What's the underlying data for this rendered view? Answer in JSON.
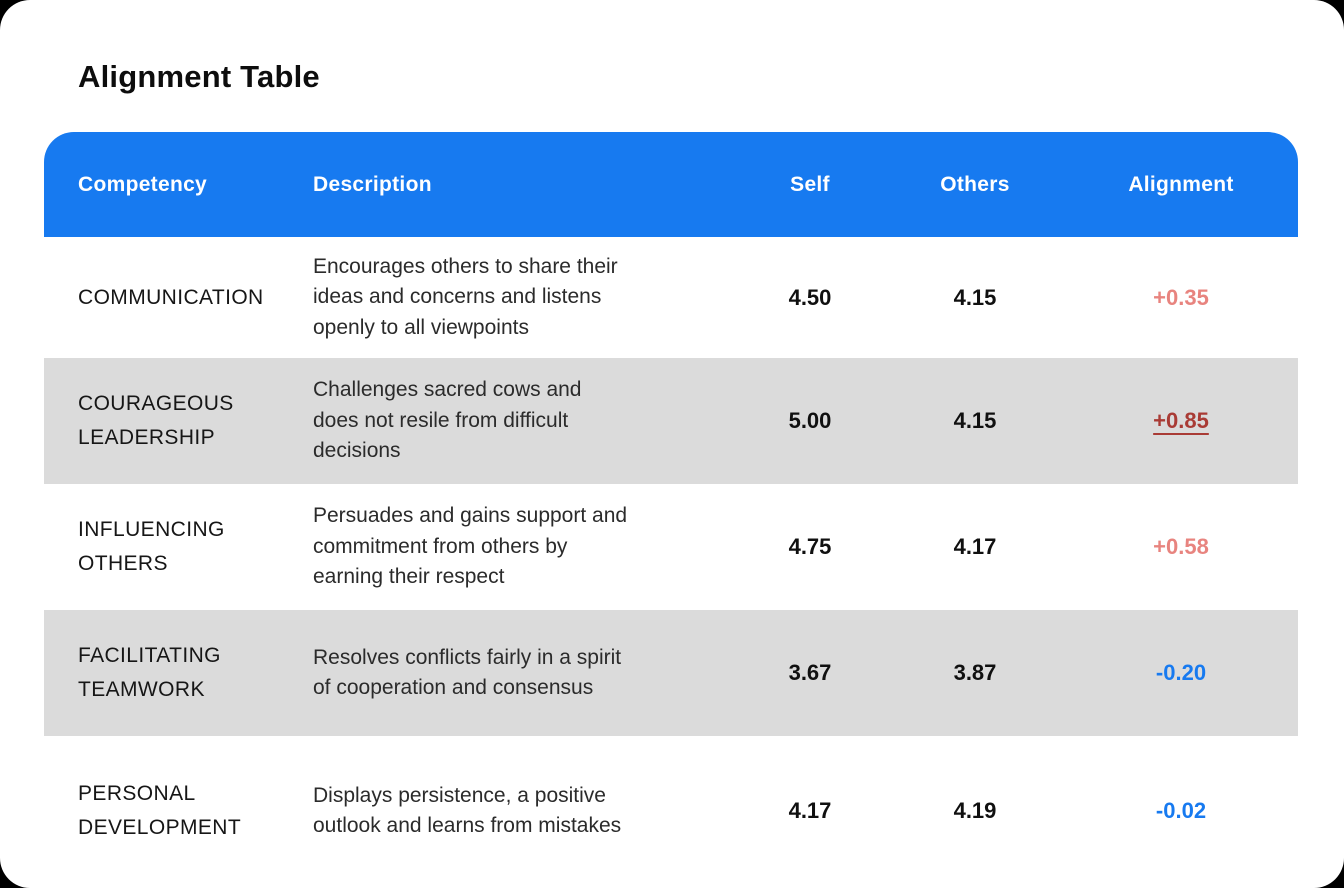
{
  "page": {
    "title": "Alignment Table",
    "background_color": "#000000",
    "card_color": "#ffffff"
  },
  "table": {
    "header": {
      "background_color": "#177AF0",
      "text_color": "#ffffff",
      "columns": {
        "competency": "Competency",
        "description": "Description",
        "self": "Self",
        "others": "Others",
        "alignment": "Alignment"
      }
    },
    "colors": {
      "row_alt_background": "#DBDBDB",
      "positive": "#E8847F",
      "positive_strong": "#A93B35",
      "negative": "#177AF0"
    },
    "rows": [
      {
        "competency": "COMMUNICATION",
        "description": "Encourages others to share their\nideas and concerns and listens\nopenly to all viewpoints",
        "self": "4.50",
        "others": "4.15",
        "alignment": "+0.35",
        "alignment_style": "positive",
        "striped": false
      },
      {
        "competency": "COURAGEOUS LEADERSHIP",
        "description": "Challenges sacred cows and\ndoes not resile from difficult\ndecisions",
        "self": "5.00",
        "others": "4.15",
        "alignment": "+0.85",
        "alignment_style": "positive-strong",
        "striped": true
      },
      {
        "competency": "INFLUENCING OTHERS",
        "description": "Persuades and gains support and\ncommitment from others by\nearning their respect",
        "self": "4.75",
        "others": "4.17",
        "alignment": "+0.58",
        "alignment_style": "positive",
        "striped": false
      },
      {
        "competency": "FACILITATING TEAMWORK",
        "description": "Resolves conflicts fairly in a spirit\nof cooperation and consensus",
        "self": "3.67",
        "others": "3.87",
        "alignment": "-0.20",
        "alignment_style": "negative",
        "striped": true
      },
      {
        "competency": "PERSONAL DEVELOPMENT",
        "description": "Displays persistence, a positive\noutlook and learns from mistakes",
        "self": "4.17",
        "others": "4.19",
        "alignment": "-0.02",
        "alignment_style": "negative",
        "striped": false
      }
    ]
  }
}
